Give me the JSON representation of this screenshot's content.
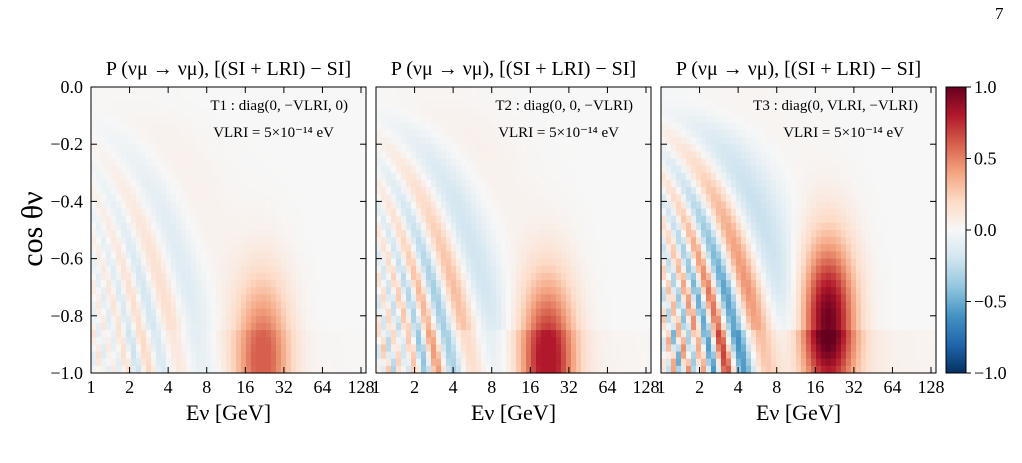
{
  "page_number": "7",
  "colorbar": {
    "ticks": [
      "1.0",
      "0.5",
      "0.0",
      "−0.5",
      "−1.0"
    ],
    "range": [
      -1.0,
      1.0
    ],
    "colors": [
      "#053061",
      "#2166ac",
      "#4393c3",
      "#92c5de",
      "#d1e5f0",
      "#f7f7f7",
      "#fddbc7",
      "#f4a582",
      "#d6604d",
      "#b2182b",
      "#67001f"
    ]
  },
  "chart_data": [
    {
      "type": "heatmap",
      "title": "P (νμ → νμ), [(SI + LRI) − SI]",
      "annotation": "T1 : diag(0, −VLRI, 0)",
      "annotation2": "VLRI = 5×10⁻¹⁴ eV",
      "xlabel": "Eν [GeV]",
      "ylabel": "cos θν",
      "x_scale": "log2",
      "xlim": [
        1,
        140
      ],
      "ylim": [
        -1.0,
        0.0
      ],
      "x_ticks": [
        "1",
        "2",
        "4",
        "8",
        "16",
        "32",
        "64",
        "128"
      ],
      "y_ticks": [
        "0.0",
        "−0.2",
        "−0.4",
        "−0.6",
        "−0.8",
        "−1.0"
      ],
      "peak_region": {
        "E_GeV": 22,
        "cos": -0.95,
        "value": 0.6
      },
      "value_range": [
        -0.4,
        0.6
      ]
    },
    {
      "type": "heatmap",
      "title": "P (νμ → νμ), [(SI + LRI) − SI]",
      "annotation": "T2 : diag(0, 0, −VLRI)",
      "annotation2": "VLRI = 5×10⁻¹⁴ eV",
      "xlabel": "Eν [GeV]",
      "x_scale": "log2",
      "xlim": [
        1,
        140
      ],
      "ylim": [
        -1.0,
        0.0
      ],
      "x_ticks": [
        "1",
        "2",
        "4",
        "8",
        "16",
        "32",
        "64",
        "128"
      ],
      "peak_region": {
        "E_GeV": 22,
        "cos": -0.95,
        "value": 0.8
      },
      "value_range": [
        -0.5,
        0.8
      ]
    },
    {
      "type": "heatmap",
      "title": "P (νμ → νμ), [(SI + LRI) − SI]",
      "annotation": "T3 : diag(0, VLRI, −VLRI)",
      "annotation2": "VLRI = 5×10⁻¹⁴ eV",
      "xlabel": "Eν [GeV]",
      "x_scale": "log2",
      "xlim": [
        1,
        140
      ],
      "ylim": [
        -1.0,
        0.0
      ],
      "x_ticks": [
        "1",
        "2",
        "4",
        "8",
        "16",
        "32",
        "64",
        "128"
      ],
      "peak_region": {
        "E_GeV": 20,
        "cos": -0.82,
        "value": 1.0
      },
      "value_range": [
        -0.8,
        1.0
      ]
    }
  ]
}
